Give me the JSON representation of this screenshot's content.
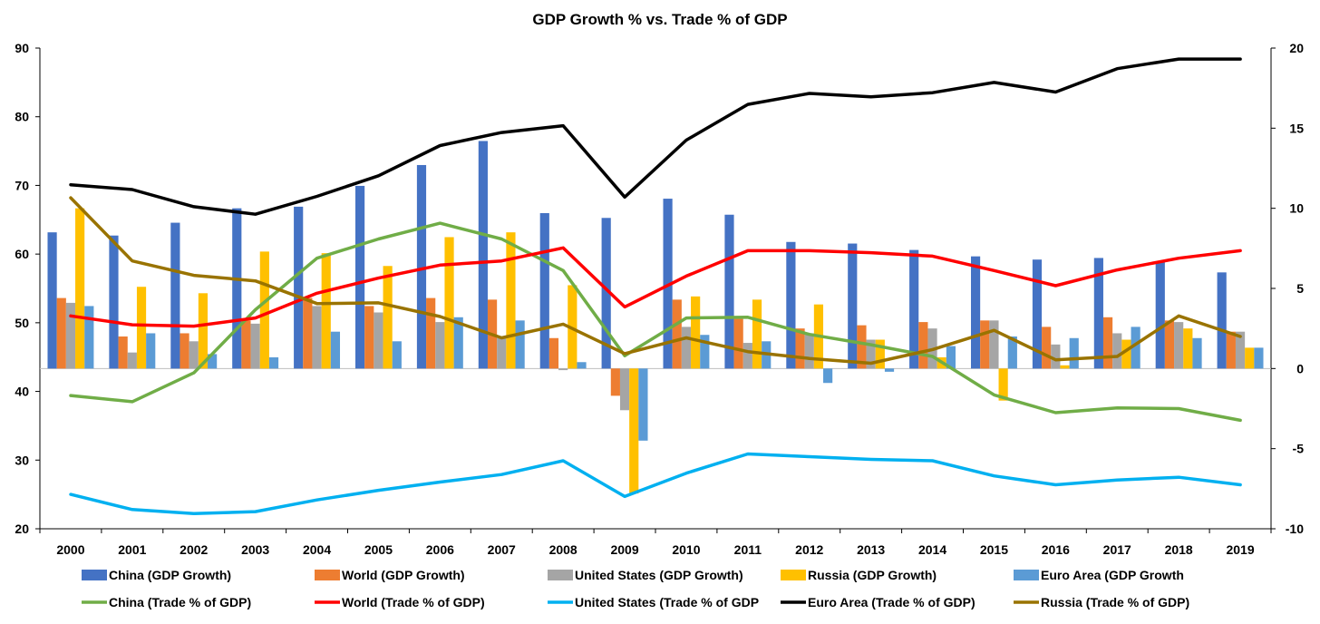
{
  "chart_data": {
    "type": "bar+line",
    "title": "GDP Growth % vs. Trade % of GDP",
    "categories": [
      "2000",
      "2001",
      "2002",
      "2003",
      "2004",
      "2005",
      "2006",
      "2007",
      "2008",
      "2009",
      "2010",
      "2011",
      "2012",
      "2013",
      "2014",
      "2015",
      "2016",
      "2017",
      "2018",
      "2019"
    ],
    "y_left": {
      "min": 20,
      "max": 90,
      "ticks": [
        20,
        30,
        40,
        50,
        60,
        70,
        80,
        90
      ]
    },
    "y_right": {
      "min": -10,
      "max": 20,
      "ticks": [
        -10,
        -5,
        0,
        5,
        10,
        15,
        20
      ]
    },
    "bar_series": [
      {
        "name": "China (GDP Growth)",
        "color": "#4472C4",
        "axis": "right",
        "values": [
          8.5,
          8.3,
          9.1,
          10.0,
          10.1,
          11.4,
          12.7,
          14.2,
          9.7,
          9.4,
          10.6,
          9.6,
          7.9,
          7.8,
          7.4,
          7.0,
          6.8,
          6.9,
          6.7,
          6.0
        ]
      },
      {
        "name": "World (GDP Growth)",
        "color": "#ED7D31",
        "axis": "right",
        "values": [
          4.4,
          2.0,
          2.2,
          3.0,
          4.4,
          3.9,
          4.4,
          4.3,
          1.9,
          -1.7,
          4.3,
          3.1,
          2.5,
          2.7,
          2.9,
          3.0,
          2.6,
          3.2,
          3.0,
          2.3
        ]
      },
      {
        "name": "United States (GDP Growth)",
        "color": "#A5A5A5",
        "axis": "right",
        "values": [
          4.1,
          1.0,
          1.7,
          2.8,
          3.9,
          3.5,
          2.9,
          1.9,
          -0.1,
          -2.6,
          2.6,
          1.6,
          2.2,
          1.8,
          2.5,
          3.0,
          1.5,
          2.2,
          2.9,
          2.3
        ]
      },
      {
        "name": "Russia (GDP Growth)",
        "color": "#FFC000",
        "axis": "right",
        "values": [
          10.0,
          5.1,
          4.7,
          7.3,
          7.2,
          6.4,
          8.2,
          8.5,
          5.2,
          -7.8,
          4.5,
          4.3,
          4.0,
          1.8,
          0.7,
          -2.0,
          0.2,
          1.8,
          2.5,
          1.3
        ]
      },
      {
        "name": "Euro Area (GDP Growth",
        "color": "#5B9BD5",
        "axis": "right",
        "values": [
          3.9,
          2.2,
          0.9,
          0.7,
          2.3,
          1.7,
          3.2,
          3.0,
          0.4,
          -4.5,
          2.1,
          1.7,
          -0.9,
          -0.2,
          1.4,
          2.0,
          1.9,
          2.6,
          1.9,
          1.3
        ]
      }
    ],
    "line_series": [
      {
        "name": "China (Trade % of GDP)",
        "color": "#70AD47",
        "axis": "left",
        "values": [
          39.4,
          38.5,
          42.7,
          51.9,
          59.4,
          62.2,
          64.5,
          62.2,
          57.6,
          45.2,
          50.7,
          50.8,
          48.3,
          46.8,
          45.1,
          39.5,
          36.9,
          37.6,
          37.5,
          35.8
        ]
      },
      {
        "name": "World (Trade % of GDP)",
        "color": "#FF0000",
        "axis": "left",
        "values": [
          51.0,
          49.7,
          49.5,
          50.7,
          54.3,
          56.5,
          58.4,
          59.0,
          60.9,
          52.3,
          56.8,
          60.5,
          60.5,
          60.2,
          59.7,
          57.6,
          55.4,
          57.7,
          59.4,
          60.5
        ]
      },
      {
        "name": "United States (Trade % of GDP",
        "color": "#00B0F0",
        "axis": "left",
        "values": [
          25.0,
          22.8,
          22.2,
          22.5,
          24.2,
          25.6,
          26.8,
          27.9,
          29.9,
          24.7,
          28.1,
          30.9,
          30.5,
          30.1,
          29.9,
          27.7,
          26.4,
          27.1,
          27.5,
          26.4
        ]
      },
      {
        "name": "Euro Area (Trade % of GDP)",
        "color": "#000000",
        "axis": "left",
        "values": [
          70.1,
          69.4,
          66.9,
          65.8,
          68.4,
          71.4,
          75.8,
          77.7,
          78.7,
          68.3,
          76.6,
          81.8,
          83.4,
          82.9,
          83.5,
          85.0,
          83.6,
          87.0,
          88.4,
          88.4
        ]
      },
      {
        "name": "Russia (Trade % of GDP)",
        "color": "#997300",
        "axis": "left",
        "values": [
          68.2,
          59.0,
          56.9,
          56.1,
          52.8,
          52.9,
          50.9,
          47.8,
          49.8,
          45.5,
          47.8,
          45.8,
          44.8,
          44.1,
          46.1,
          48.9,
          44.6,
          45.1,
          51.0,
          48.0
        ]
      }
    ]
  }
}
